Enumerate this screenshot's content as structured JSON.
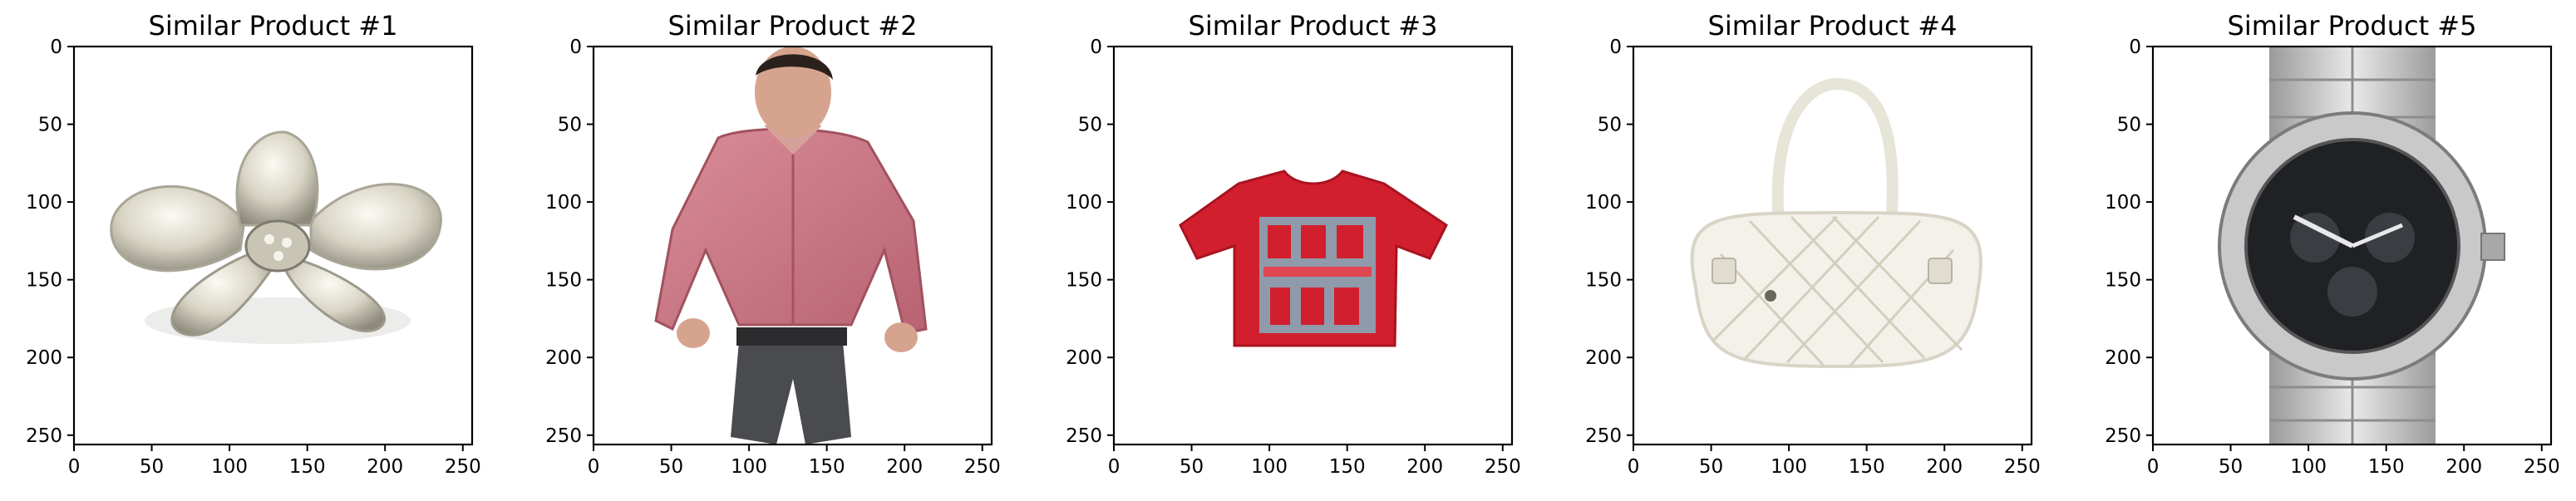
{
  "chart_data": [
    {
      "type": "image",
      "title": "Similar Product #1",
      "subject": "silver flower-shaped brooch",
      "xlim": [
        0,
        256
      ],
      "ylim": [
        256,
        0
      ],
      "xticks": [
        0,
        50,
        100,
        150,
        200,
        250
      ],
      "yticks": [
        0,
        50,
        100,
        150,
        200,
        250
      ]
    },
    {
      "type": "image",
      "title": "Similar Product #2",
      "subject": "man in pink shirt and grey trousers",
      "xlim": [
        0,
        256
      ],
      "ylim": [
        256,
        0
      ],
      "xticks": [
        0,
        50,
        100,
        150,
        200,
        250
      ],
      "yticks": [
        0,
        50,
        100,
        150,
        200,
        250
      ]
    },
    {
      "type": "image",
      "title": "Similar Product #3",
      "subject": "red graphic t-shirt",
      "xlim": [
        0,
        256
      ],
      "ylim": [
        256,
        0
      ],
      "xticks": [
        0,
        50,
        100,
        150,
        200,
        250
      ],
      "yticks": [
        0,
        50,
        100,
        150,
        200,
        250
      ]
    },
    {
      "type": "image",
      "title": "Similar Product #4",
      "subject": "white quilted handbag",
      "xlim": [
        0,
        256
      ],
      "ylim": [
        256,
        0
      ],
      "xticks": [
        0,
        50,
        100,
        150,
        200,
        250
      ],
      "yticks": [
        0,
        50,
        100,
        150,
        200,
        250
      ]
    },
    {
      "type": "image",
      "title": "Similar Product #5",
      "subject": "silver chronograph wristwatch",
      "xlim": [
        0,
        256
      ],
      "ylim": [
        256,
        0
      ],
      "xticks": [
        0,
        50,
        100,
        150,
        200,
        250
      ],
      "yticks": [
        0,
        50,
        100,
        150,
        200,
        250
      ]
    }
  ]
}
